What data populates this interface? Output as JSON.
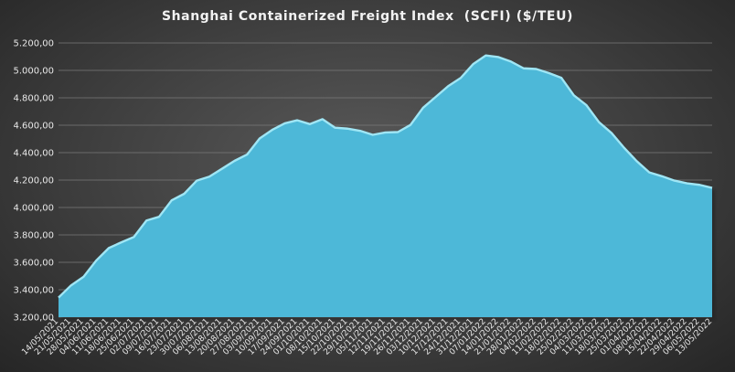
{
  "chart_data": {
    "type": "area",
    "title": "Shanghai Containerized Freight Index  (SCFI) ($/TEU)",
    "xlabel": "",
    "ylabel": "",
    "ylim": [
      3200,
      5200
    ],
    "y_ticks": [
      3200,
      3400,
      3600,
      3800,
      4000,
      4200,
      4400,
      4600,
      4800,
      5000,
      5200
    ],
    "y_tick_labels": [
      "3.200,00",
      "3.400,00",
      "3.600,00",
      "3.800,00",
      "4.000,00",
      "4.200,00",
      "4.400,00",
      "4.600,00",
      "4.800,00",
      "5.000,00",
      "5.200,00"
    ],
    "grid": true,
    "legend": "none",
    "area_color": "#4db8d8",
    "edge_color": "#9fe6f5",
    "x": [
      "14/05/2021",
      "21/05/2021",
      "28/05/2021",
      "04/06/2021",
      "11/06/2021",
      "18/06/2021",
      "25/06/2021",
      "02/07/2021",
      "09/07/2021",
      "16/07/2021",
      "23/07/2021",
      "30/07/2021",
      "06/08/2021",
      "13/08/2021",
      "20/08/2021",
      "27/08/2021",
      "03/09/2021",
      "10/09/2021",
      "17/09/2021",
      "24/09/2021",
      "01/10/2021",
      "08/10/2021",
      "15/10/2021",
      "22/10/2021",
      "29/10/2021",
      "05/11/2021",
      "12/11/2021",
      "19/11/2021",
      "26/11/2021",
      "03/12/2021",
      "10/12/2021",
      "17/12/2021",
      "24/12/2021",
      "31/12/2021",
      "07/01/2022",
      "14/01/2022",
      "21/01/2022",
      "28/01/2022",
      "04/02/2022",
      "11/02/2022",
      "18/02/2022",
      "25/02/2022",
      "04/03/2022",
      "11/03/2022",
      "18/03/2022",
      "25/03/2022",
      "01/04/2022",
      "08/04/2022",
      "15/04/2022",
      "22/04/2022",
      "29/04/2022",
      "06/05/2022",
      "13/05/2022"
    ],
    "values": [
      3343,
      3432,
      3495,
      3613,
      3704,
      3746,
      3785,
      3905,
      3932,
      4052,
      4100,
      4196,
      4225,
      4282,
      4340,
      4386,
      4503,
      4566,
      4614,
      4636,
      4608,
      4644,
      4582,
      4575,
      4559,
      4530,
      4547,
      4550,
      4602,
      4727,
      4806,
      4885,
      4945,
      5047,
      5109,
      5097,
      5064,
      5015,
      5010,
      4981,
      4946,
      4818,
      4746,
      4622,
      4543,
      4435,
      4338,
      4256,
      4228,
      4196,
      4176,
      4165,
      4143
    ]
  }
}
